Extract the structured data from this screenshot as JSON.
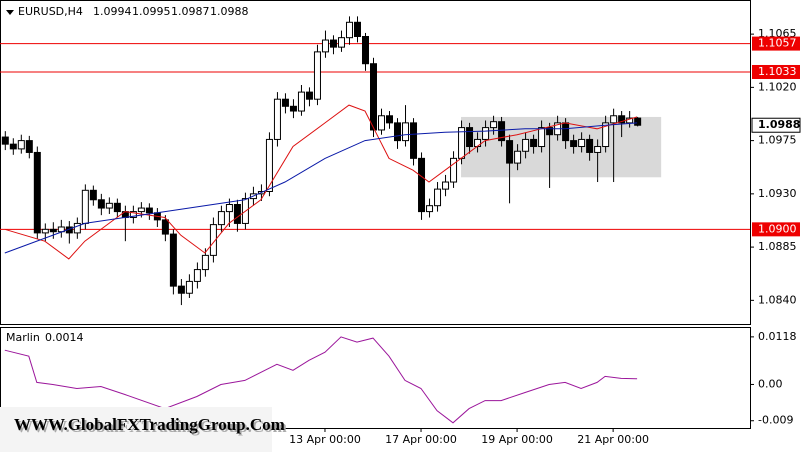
{
  "chart_data": [
    {
      "type": "candlestick",
      "symbol": "EURUSD,H4",
      "candles": [
        [
          1.0978,
          1.0983,
          1.0967,
          1.0972
        ],
        [
          1.0972,
          1.0977,
          1.0963,
          1.0968
        ],
        [
          1.0968,
          1.098,
          1.0964,
          1.0975
        ],
        [
          1.0975,
          1.0979,
          1.096,
          1.0965
        ],
        [
          1.0965,
          1.097,
          1.0892,
          1.0897
        ],
        [
          1.0897,
          1.0905,
          1.089,
          1.09
        ],
        [
          1.09,
          1.0906,
          1.0892,
          1.0898
        ],
        [
          1.0898,
          1.0908,
          1.0893,
          1.0902
        ],
        [
          1.0902,
          1.0907,
          1.0888,
          1.0897
        ],
        [
          1.0897,
          1.091,
          1.0892,
          1.0905
        ],
        [
          1.0905,
          1.0938,
          1.09,
          1.0933
        ],
        [
          1.0933,
          1.0937,
          1.092,
          1.0925
        ],
        [
          1.0925,
          1.093,
          1.0912,
          1.0918
        ],
        [
          1.0918,
          1.0927,
          1.0913,
          1.0922
        ],
        [
          1.0922,
          1.0926,
          1.091,
          1.0915
        ],
        [
          1.0915,
          1.092,
          1.089,
          1.091
        ],
        [
          1.091,
          1.092,
          1.0905,
          1.0915
        ],
        [
          1.0915,
          1.0923,
          1.091,
          1.0918
        ],
        [
          1.0918,
          1.0922,
          1.0908,
          1.0914
        ],
        [
          1.0914,
          1.0918,
          1.0902,
          1.0908
        ],
        [
          1.0908,
          1.0912,
          1.089,
          1.0896
        ],
        [
          1.0896,
          1.09,
          1.0845,
          1.0852
        ],
        [
          1.0852,
          1.0858,
          1.0836,
          1.0846
        ],
        [
          1.0846,
          1.0862,
          1.0842,
          1.0856
        ],
        [
          1.0856,
          1.0872,
          1.085,
          1.0866
        ],
        [
          1.0866,
          1.0884,
          1.086,
          1.0878
        ],
        [
          1.0878,
          1.091,
          1.0872,
          1.0904
        ],
        [
          1.0904,
          1.092,
          1.0898,
          1.0915
        ],
        [
          1.0915,
          1.0926,
          1.0902,
          1.0921
        ],
        [
          1.0921,
          1.0925,
          1.0898,
          1.0905
        ],
        [
          1.0905,
          1.0931,
          1.09,
          1.0926
        ],
        [
          1.0926,
          1.0936,
          1.092,
          1.093
        ],
        [
          1.093,
          1.0938,
          1.0924,
          1.0932
        ],
        [
          1.0932,
          1.0982,
          1.0928,
          1.0976
        ],
        [
          1.0976,
          1.1016,
          1.097,
          1.101
        ],
        [
          1.101,
          1.1015,
          1.0998,
          1.1004
        ],
        [
          1.1004,
          1.101,
          1.0994,
          1.1
        ],
        [
          1.1,
          1.1022,
          1.0996,
          1.1016
        ],
        [
          1.1016,
          1.102,
          1.1004,
          1.101
        ],
        [
          1.101,
          1.1056,
          1.1005,
          1.105
        ],
        [
          1.105,
          1.1068,
          1.1045,
          1.106
        ],
        [
          1.106,
          1.1064,
          1.1048,
          1.1054
        ],
        [
          1.1054,
          1.1068,
          1.105,
          1.1062
        ],
        [
          1.1062,
          1.108,
          1.1056,
          1.1075
        ],
        [
          1.1075,
          1.108,
          1.1058,
          1.1063
        ],
        [
          1.1063,
          1.1066,
          1.1034,
          1.104
        ],
        [
          1.104,
          1.1045,
          1.0978,
          1.0984
        ],
        [
          1.0984,
          1.1002,
          1.098,
          1.0996
        ],
        [
          1.0996,
          1.1,
          1.0985,
          1.099
        ],
        [
          1.099,
          1.0994,
          1.0968,
          1.0975
        ],
        [
          1.0975,
          1.1005,
          1.097,
          1.099
        ],
        [
          1.099,
          1.0994,
          1.0954,
          1.096
        ],
        [
          1.096,
          1.0965,
          1.0908,
          1.0915
        ],
        [
          1.0915,
          1.0926,
          1.091,
          1.092
        ],
        [
          1.092,
          1.094,
          1.0915,
          1.0934
        ],
        [
          1.0934,
          1.0946,
          1.0928,
          1.094
        ],
        [
          1.094,
          1.0966,
          1.0935,
          1.096
        ],
        [
          1.096,
          1.0992,
          1.0955,
          1.0986
        ],
        [
          1.0986,
          1.099,
          1.0964,
          1.097
        ],
        [
          1.097,
          1.0982,
          1.0965,
          1.0976
        ],
        [
          1.0976,
          1.0992,
          1.097,
          1.0986
        ],
        [
          1.0986,
          1.0996,
          1.098,
          1.0991
        ],
        [
          1.0991,
          1.0995,
          1.097,
          1.0975
        ],
        [
          1.0975,
          1.098,
          1.0922,
          1.0956
        ],
        [
          1.0956,
          1.0972,
          1.095,
          1.0966
        ],
        [
          1.0966,
          1.0982,
          1.096,
          1.0976
        ],
        [
          1.0976,
          1.098,
          1.0964,
          1.097
        ],
        [
          1.097,
          1.0992,
          1.0965,
          1.0986
        ],
        [
          1.0986,
          1.099,
          1.0935,
          1.098
        ],
        [
          1.098,
          1.0996,
          1.0975,
          1.099
        ],
        [
          1.099,
          1.0994,
          1.0968,
          1.0975
        ],
        [
          1.0975,
          1.098,
          1.0964,
          1.097
        ],
        [
          1.097,
          1.0982,
          1.0965,
          1.0976
        ],
        [
          1.0976,
          1.098,
          1.0958,
          1.0965
        ],
        [
          1.0965,
          1.0976,
          1.094,
          1.097
        ],
        [
          1.097,
          1.0996,
          1.0965,
          1.099
        ],
        [
          1.099,
          1.1002,
          1.094,
          1.0996
        ],
        [
          1.0996,
          1.1,
          1.0978,
          1.099
        ],
        [
          1.099,
          1.1,
          1.0986,
          1.0994
        ],
        [
          1.0994,
          1.0995,
          1.0987,
          1.0988
        ]
      ],
      "series": [
        {
          "color": "#dd1111",
          "x": [
            0,
            5,
            8,
            10,
            15,
            20,
            22,
            25,
            28,
            32,
            36,
            40,
            43,
            45,
            48,
            51,
            53,
            56,
            60,
            64,
            67,
            70,
            74,
            79
          ],
          "values": [
            1.09,
            1.089,
            1.0875,
            1.089,
            1.0915,
            1.091,
            1.0895,
            1.088,
            1.0905,
            1.0925,
            1.097,
            1.099,
            1.1005,
            1.1,
            1.096,
            1.095,
            1.094,
            1.0955,
            1.0975,
            1.098,
            1.0985,
            1.099,
            1.0985,
            1.0995
          ]
        },
        {
          "color": "#0a1aa8",
          "x": [
            0,
            10,
            20,
            30,
            35,
            40,
            45,
            50,
            55,
            60,
            65,
            70,
            75,
            79
          ],
          "values": [
            1.088,
            1.0905,
            1.0915,
            1.0925,
            1.094,
            1.096,
            1.0975,
            1.098,
            1.0982,
            1.0983,
            1.0985,
            1.0985,
            1.0988,
            1.099
          ]
        }
      ],
      "levels": [
        1.1057,
        1.1033,
        {
          "value": 1.09,
          "label": "1.0900"
        }
      ],
      "level_color": "#ee0000",
      "current_price": 1.0988,
      "zone": {
        "x": [
          57,
          82
        ],
        "y": [
          1.0944,
          1.0995
        ]
      },
      "xlim": [
        -0.6,
        93.1
      ],
      "ylim": [
        1.082,
        1.1093
      ],
      "yticks": [
        1.1065,
        {
          "value": 1.102,
          "label": "1.1020"
        },
        1.0975,
        {
          "value": 1.093,
          "label": "1.0930"
        },
        1.0885,
        {
          "value": 1.084,
          "label": "1.0840"
        }
      ]
    },
    {
      "type": "line",
      "name": "Marlin",
      "color": "#9b169b",
      "x": [
        0,
        3,
        4,
        6,
        9,
        12,
        15,
        20,
        24,
        27,
        30,
        33,
        34,
        36,
        38,
        40,
        42,
        44,
        46,
        48,
        50,
        52,
        54,
        56,
        58,
        60,
        62,
        65,
        68,
        70,
        72,
        74,
        75,
        77,
        79
      ],
      "values": [
        0.0085,
        0.007,
        0.0005,
        0,
        -0.001,
        -0.0005,
        -0.0025,
        -0.006,
        -0.003,
        0,
        0.001,
        0.004,
        0.005,
        0.0035,
        0.006,
        0.008,
        0.0118,
        0.0105,
        0.0115,
        0.007,
        0.001,
        -0.001,
        -0.0065,
        -0.0095,
        -0.006,
        -0.004,
        -0.004,
        -0.002,
        0,
        0.0005,
        -0.001,
        0.0005,
        0.002,
        0.0015,
        0.0014
      ],
      "xlim": [
        -0.6,
        93.1
      ],
      "ylim": [
        -0.0108,
        0.014
      ],
      "yticks": [
        0.0118,
        {
          "value": 0,
          "label": "0.00"
        },
        -0.009
      ],
      "xticks": [
        {
          "value": 40,
          "label": "13 Apr 00:00"
        },
        {
          "value": 52,
          "label": "17 Apr 00:00"
        },
        {
          "value": 64,
          "label": "19 Apr 00:00"
        },
        {
          "value": 76,
          "label": "21 Apr 00:00"
        }
      ]
    }
  ],
  "watermark": "WWW.GlobalFXTradingGroup.Com"
}
